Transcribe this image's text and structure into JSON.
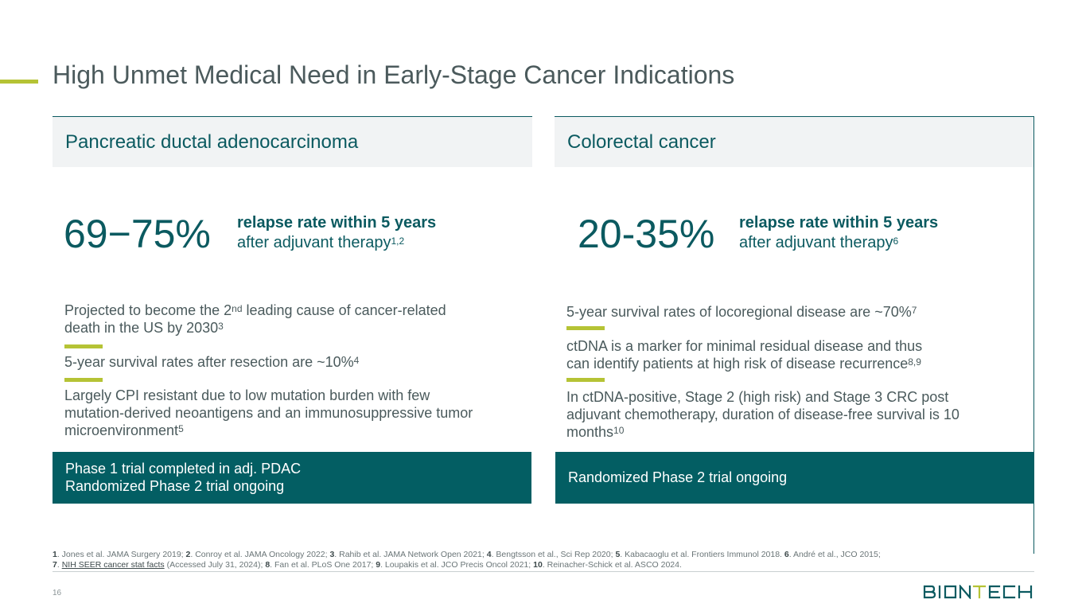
{
  "slide": {
    "title": "High Unmet Medical Need in Early-Stage Cancer Indications",
    "page_number": "16"
  },
  "colors": {
    "teal": "#0b5a60",
    "callout": "#035e63",
    "accent": "#b5c335",
    "panel_header": "#f1f3f4"
  },
  "left": {
    "header": "Pancreatic ductal adenocarcinoma",
    "stat": "69−75%",
    "stat_line1": "relapse rate within 5 years",
    "stat_line2": "after adjuvant therapy",
    "stat_sup": "1,2",
    "bullets": [
      {
        "a": "Projected to become the 2",
        "sup1": "nd",
        "b": " leading cause of cancer-related",
        "c": "death in the US by 2030",
        "sup2": "3"
      },
      {
        "text": "5-year survival rates after resection are ~10%",
        "sup": "4"
      },
      {
        "line1": "Largely CPI resistant due to low mutation burden with few",
        "line2": "mutation-derived neoantigens and an immunosuppressive tumor",
        "line3": "microenvironment",
        "sup": "5"
      }
    ],
    "callout_line1": "Phase 1 trial completed in adj. PDAC",
    "callout_line2": "Randomized Phase 2 trial ongoing"
  },
  "right": {
    "header": "Colorectal cancer",
    "stat": "20-35%",
    "stat_line1": "relapse rate within 5 years",
    "stat_line2": "after adjuvant therapy",
    "stat_sup": "6",
    "bullets": [
      {
        "text": "5-year survival rates of locoregional disease are ~70%",
        "sup": "7"
      },
      {
        "line1": "ctDNA is a marker for minimal residual disease and thus",
        "line2": "can identify patients at high risk of disease recurrence",
        "sup": "8,9"
      },
      {
        "line1": "In ctDNA-positive, Stage 2 (high risk) and Stage 3 CRC post",
        "line2": "adjuvant chemotherapy, duration of disease-free survival is 10",
        "line3": "months",
        "sup": "10"
      }
    ],
    "callout": "Randomized Phase 2 trial ongoing"
  },
  "references": {
    "r1n": "1",
    "r1": ". Jones et al. JAMA Surgery 2019; ",
    "r2n": "2",
    "r2": ". Conroy et al. JAMA Oncology 2022; ",
    "r3n": "3",
    "r3": ". Rahib et al. JAMA Network Open 2021; ",
    "r4n": "4",
    "r4": ". Bengtsson et al., Sci Rep 2020; ",
    "r5n": "5",
    "r5": ". Kabacaoglu et al. Frontiers Immunol 2018. ",
    "r6n": "6",
    "r6": ". André et al., JCO 2015;",
    "r7n": "7",
    "r7sep": ". ",
    "r7link": "NIH SEER cancer stat facts",
    "r7": " (Accessed July 31, 2024); ",
    "r8n": "8",
    "r8": ". Fan et al. PLoS One  2017; ",
    "r9n": "9",
    "r9": ". Loupakis et al. JCO Precis Oncol 2021; ",
    "r10n": "10",
    "r10": ". Reinacher-Schick et al. ASCO 2024."
  },
  "logo": {
    "text": "BIONTECH"
  }
}
